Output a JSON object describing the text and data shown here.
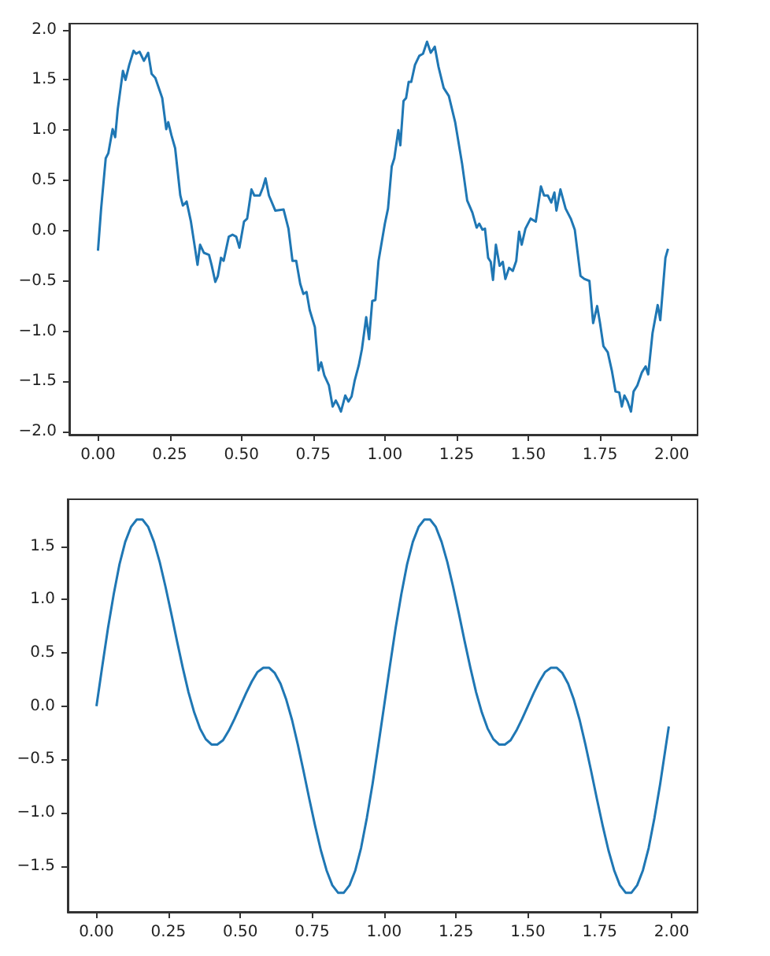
{
  "chart_data": [
    {
      "type": "line",
      "color": "#1f77b4",
      "grid": false,
      "marker": "none",
      "line_style": "solid",
      "x": [
        0,
        0.011,
        0.027,
        0.036,
        0.051,
        0.06,
        0.069,
        0.087,
        0.096,
        0.109,
        0.124,
        0.133,
        0.145,
        0.16,
        0.175,
        0.187,
        0.2,
        0.224,
        0.238,
        0.245,
        0.256,
        0.269,
        0.287,
        0.296,
        0.309,
        0.324,
        0.338,
        0.347,
        0.356,
        0.369,
        0.387,
        0.396,
        0.409,
        0.418,
        0.429,
        0.438,
        0.456,
        0.469,
        0.482,
        0.493,
        0.509,
        0.52,
        0.535,
        0.545,
        0.564,
        0.575,
        0.584,
        0.596,
        0.618,
        0.647,
        0.664,
        0.678,
        0.691,
        0.705,
        0.716,
        0.727,
        0.738,
        0.756,
        0.769,
        0.778,
        0.789,
        0.805,
        0.818,
        0.829,
        0.838,
        0.847,
        0.862,
        0.873,
        0.884,
        0.895,
        0.909,
        0.92,
        0.935,
        0.945,
        0.956,
        0.967,
        0.978,
        1.0,
        1.011,
        1.024,
        1.033,
        1.047,
        1.054,
        1.065,
        1.074,
        1.083,
        1.092,
        1.105,
        1.12,
        1.133,
        1.147,
        1.16,
        1.174,
        1.187,
        1.205,
        1.223,
        1.245,
        1.269,
        1.287,
        1.305,
        1.32,
        1.329,
        1.34,
        1.349,
        1.36,
        1.369,
        1.377,
        1.387,
        1.4,
        1.411,
        1.42,
        1.433,
        1.446,
        1.458,
        1.468,
        1.477,
        1.49,
        1.508,
        1.526,
        1.544,
        1.555,
        1.568,
        1.58,
        1.591,
        1.598,
        1.612,
        1.63,
        1.648,
        1.662,
        1.682,
        1.695,
        1.713,
        1.726,
        1.74,
        1.75,
        1.762,
        1.777,
        1.791,
        1.804,
        1.817,
        1.826,
        1.835,
        1.846,
        1.858,
        1.867,
        1.88,
        1.896,
        1.909,
        1.918,
        1.933,
        1.951,
        1.96,
        1.978,
        1.987
      ],
      "values": [
        -0.2,
        0.22,
        0.72,
        0.77,
        1.01,
        0.93,
        1.21,
        1.59,
        1.5,
        1.65,
        1.79,
        1.76,
        1.78,
        1.69,
        1.77,
        1.56,
        1.52,
        1.32,
        1.01,
        1.08,
        0.95,
        0.82,
        0.35,
        0.25,
        0.29,
        0.09,
        -0.17,
        -0.34,
        -0.14,
        -0.22,
        -0.24,
        -0.34,
        -0.51,
        -0.45,
        -0.27,
        -0.3,
        -0.06,
        -0.04,
        -0.06,
        -0.17,
        0.09,
        0.12,
        0.41,
        0.35,
        0.35,
        0.43,
        0.52,
        0.35,
        0.2,
        0.21,
        0.02,
        -0.3,
        -0.3,
        -0.53,
        -0.63,
        -0.61,
        -0.79,
        -0.96,
        -1.39,
        -1.31,
        -1.44,
        -1.54,
        -1.75,
        -1.69,
        -1.74,
        -1.8,
        -1.64,
        -1.7,
        -1.65,
        -1.49,
        -1.34,
        -1.18,
        -0.86,
        -1.08,
        -0.7,
        -0.69,
        -0.3,
        0.07,
        0.22,
        0.64,
        0.72,
        1.0,
        0.85,
        1.29,
        1.32,
        1.48,
        1.48,
        1.65,
        1.74,
        1.76,
        1.88,
        1.77,
        1.83,
        1.63,
        1.42,
        1.34,
        1.08,
        0.67,
        0.3,
        0.18,
        0.03,
        0.07,
        0.01,
        0.02,
        -0.27,
        -0.31,
        -0.49,
        -0.14,
        -0.35,
        -0.31,
        -0.48,
        -0.37,
        -0.4,
        -0.3,
        -0.01,
        -0.14,
        0.02,
        0.12,
        0.09,
        0.44,
        0.35,
        0.35,
        0.28,
        0.38,
        0.2,
        0.41,
        0.22,
        0.12,
        0.01,
        -0.45,
        -0.48,
        -0.5,
        -0.92,
        -0.75,
        -0.92,
        -1.15,
        -1.21,
        -1.39,
        -1.6,
        -1.61,
        -1.75,
        -1.64,
        -1.7,
        -1.8,
        -1.6,
        -1.54,
        -1.41,
        -1.35,
        -1.43,
        -1.02,
        -0.74,
        -0.89,
        -0.27,
        -0.18
      ],
      "xlim": [
        -0.1,
        2.09
      ],
      "ylim": [
        -2.03,
        2.06
      ],
      "xticks": [
        {
          "value": 0,
          "label": "0.00"
        },
        {
          "value": 0.25,
          "label": "0.25"
        },
        {
          "value": 0.5,
          "label": "0.50"
        },
        {
          "value": 0.75,
          "label": "0.75"
        },
        {
          "value": 1,
          "label": "1.00"
        },
        {
          "value": 1.25,
          "label": "1.25"
        },
        {
          "value": 1.5,
          "label": "1.50"
        },
        {
          "value": 1.75,
          "label": "1.75"
        },
        {
          "value": 2,
          "label": "2.00"
        }
      ],
      "yticks": [
        {
          "value": -2,
          "label": "−2.0"
        },
        {
          "value": -1.5,
          "label": "−1.5"
        },
        {
          "value": -1,
          "label": "−1.0"
        },
        {
          "value": -0.5,
          "label": "−0.5"
        },
        {
          "value": 0,
          "label": "0.0"
        },
        {
          "value": 0.5,
          "label": "0.5"
        },
        {
          "value": 1,
          "label": "1.0"
        },
        {
          "value": 1.5,
          "label": "1.5"
        },
        {
          "value": 2,
          "label": "2.0"
        }
      ]
    },
    {
      "type": "line",
      "color": "#1f77b4",
      "grid": false,
      "marker": "none",
      "line_style": "solid",
      "x": [
        0,
        0.02,
        0.04,
        0.06,
        0.08,
        0.1,
        0.12,
        0.14,
        0.16,
        0.18,
        0.2,
        0.22,
        0.24,
        0.26,
        0.28,
        0.3,
        0.32,
        0.34,
        0.36,
        0.38,
        0.4,
        0.42,
        0.44,
        0.46,
        0.48,
        0.5,
        0.52,
        0.54,
        0.56,
        0.58,
        0.6,
        0.62,
        0.64,
        0.66,
        0.68,
        0.7,
        0.72,
        0.74,
        0.76,
        0.78,
        0.8,
        0.82,
        0.84,
        0.86,
        0.88,
        0.9,
        0.92,
        0.94,
        0.96,
        0.98,
        1,
        1.02,
        1.04,
        1.06,
        1.08,
        1.1,
        1.12,
        1.14,
        1.16,
        1.18,
        1.2,
        1.22,
        1.24,
        1.26,
        1.28,
        1.3,
        1.32,
        1.34,
        1.36,
        1.38,
        1.4,
        1.42,
        1.44,
        1.46,
        1.48,
        1.5,
        1.52,
        1.54,
        1.56,
        1.58,
        1.6,
        1.62,
        1.64,
        1.66,
        1.68,
        1.7,
        1.72,
        1.74,
        1.76,
        1.78,
        1.8,
        1.82,
        1.84,
        1.86,
        1.88,
        1.9,
        1.92,
        1.94,
        1.96,
        1.98,
        1.99
      ],
      "values": [
        0,
        0.37,
        0.73,
        1.05,
        1.33,
        1.54,
        1.68,
        1.75,
        1.75,
        1.68,
        1.54,
        1.35,
        1.12,
        0.87,
        0.61,
        0.36,
        0.13,
        -0.06,
        -0.21,
        -0.31,
        -0.36,
        -0.36,
        -0.32,
        -0.23,
        -0.12,
        0,
        0.12,
        0.23,
        0.32,
        0.36,
        0.36,
        0.31,
        0.21,
        0.06,
        -0.13,
        -0.36,
        -0.61,
        -0.87,
        -1.12,
        -1.35,
        -1.54,
        -1.68,
        -1.75,
        -1.75,
        -1.68,
        -1.54,
        -1.33,
        -1.05,
        -0.73,
        -0.37,
        0,
        0.37,
        0.73,
        1.05,
        1.33,
        1.54,
        1.68,
        1.75,
        1.75,
        1.68,
        1.54,
        1.35,
        1.12,
        0.87,
        0.61,
        0.36,
        0.13,
        -0.06,
        -0.21,
        -0.31,
        -0.36,
        -0.36,
        -0.32,
        -0.23,
        -0.12,
        0,
        0.12,
        0.23,
        0.32,
        0.36,
        0.36,
        0.31,
        0.21,
        0.06,
        -0.13,
        -0.36,
        -0.61,
        -0.87,
        -1.12,
        -1.35,
        -1.54,
        -1.68,
        -1.75,
        -1.75,
        -1.68,
        -1.54,
        -1.33,
        -1.05,
        -0.73,
        -0.37,
        -0.19
      ],
      "xlim": [
        -0.1,
        2.09
      ],
      "ylim": [
        -1.93,
        1.94
      ],
      "xticks": [
        {
          "value": 0,
          "label": "0.00"
        },
        {
          "value": 0.25,
          "label": "0.25"
        },
        {
          "value": 0.5,
          "label": "0.50"
        },
        {
          "value": 0.75,
          "label": "0.75"
        },
        {
          "value": 1,
          "label": "1.00"
        },
        {
          "value": 1.25,
          "label": "1.25"
        },
        {
          "value": 1.5,
          "label": "1.50"
        },
        {
          "value": 1.75,
          "label": "1.75"
        },
        {
          "value": 2,
          "label": "2.00"
        }
      ],
      "yticks": [
        {
          "value": -1.5,
          "label": "−1.5"
        },
        {
          "value": -1,
          "label": "−1.0"
        },
        {
          "value": -0.5,
          "label": "−0.5"
        },
        {
          "value": 0,
          "label": "0.0"
        },
        {
          "value": 0.5,
          "label": "0.5"
        },
        {
          "value": 1,
          "label": "1.0"
        },
        {
          "value": 1.5,
          "label": "1.5"
        }
      ]
    }
  ]
}
